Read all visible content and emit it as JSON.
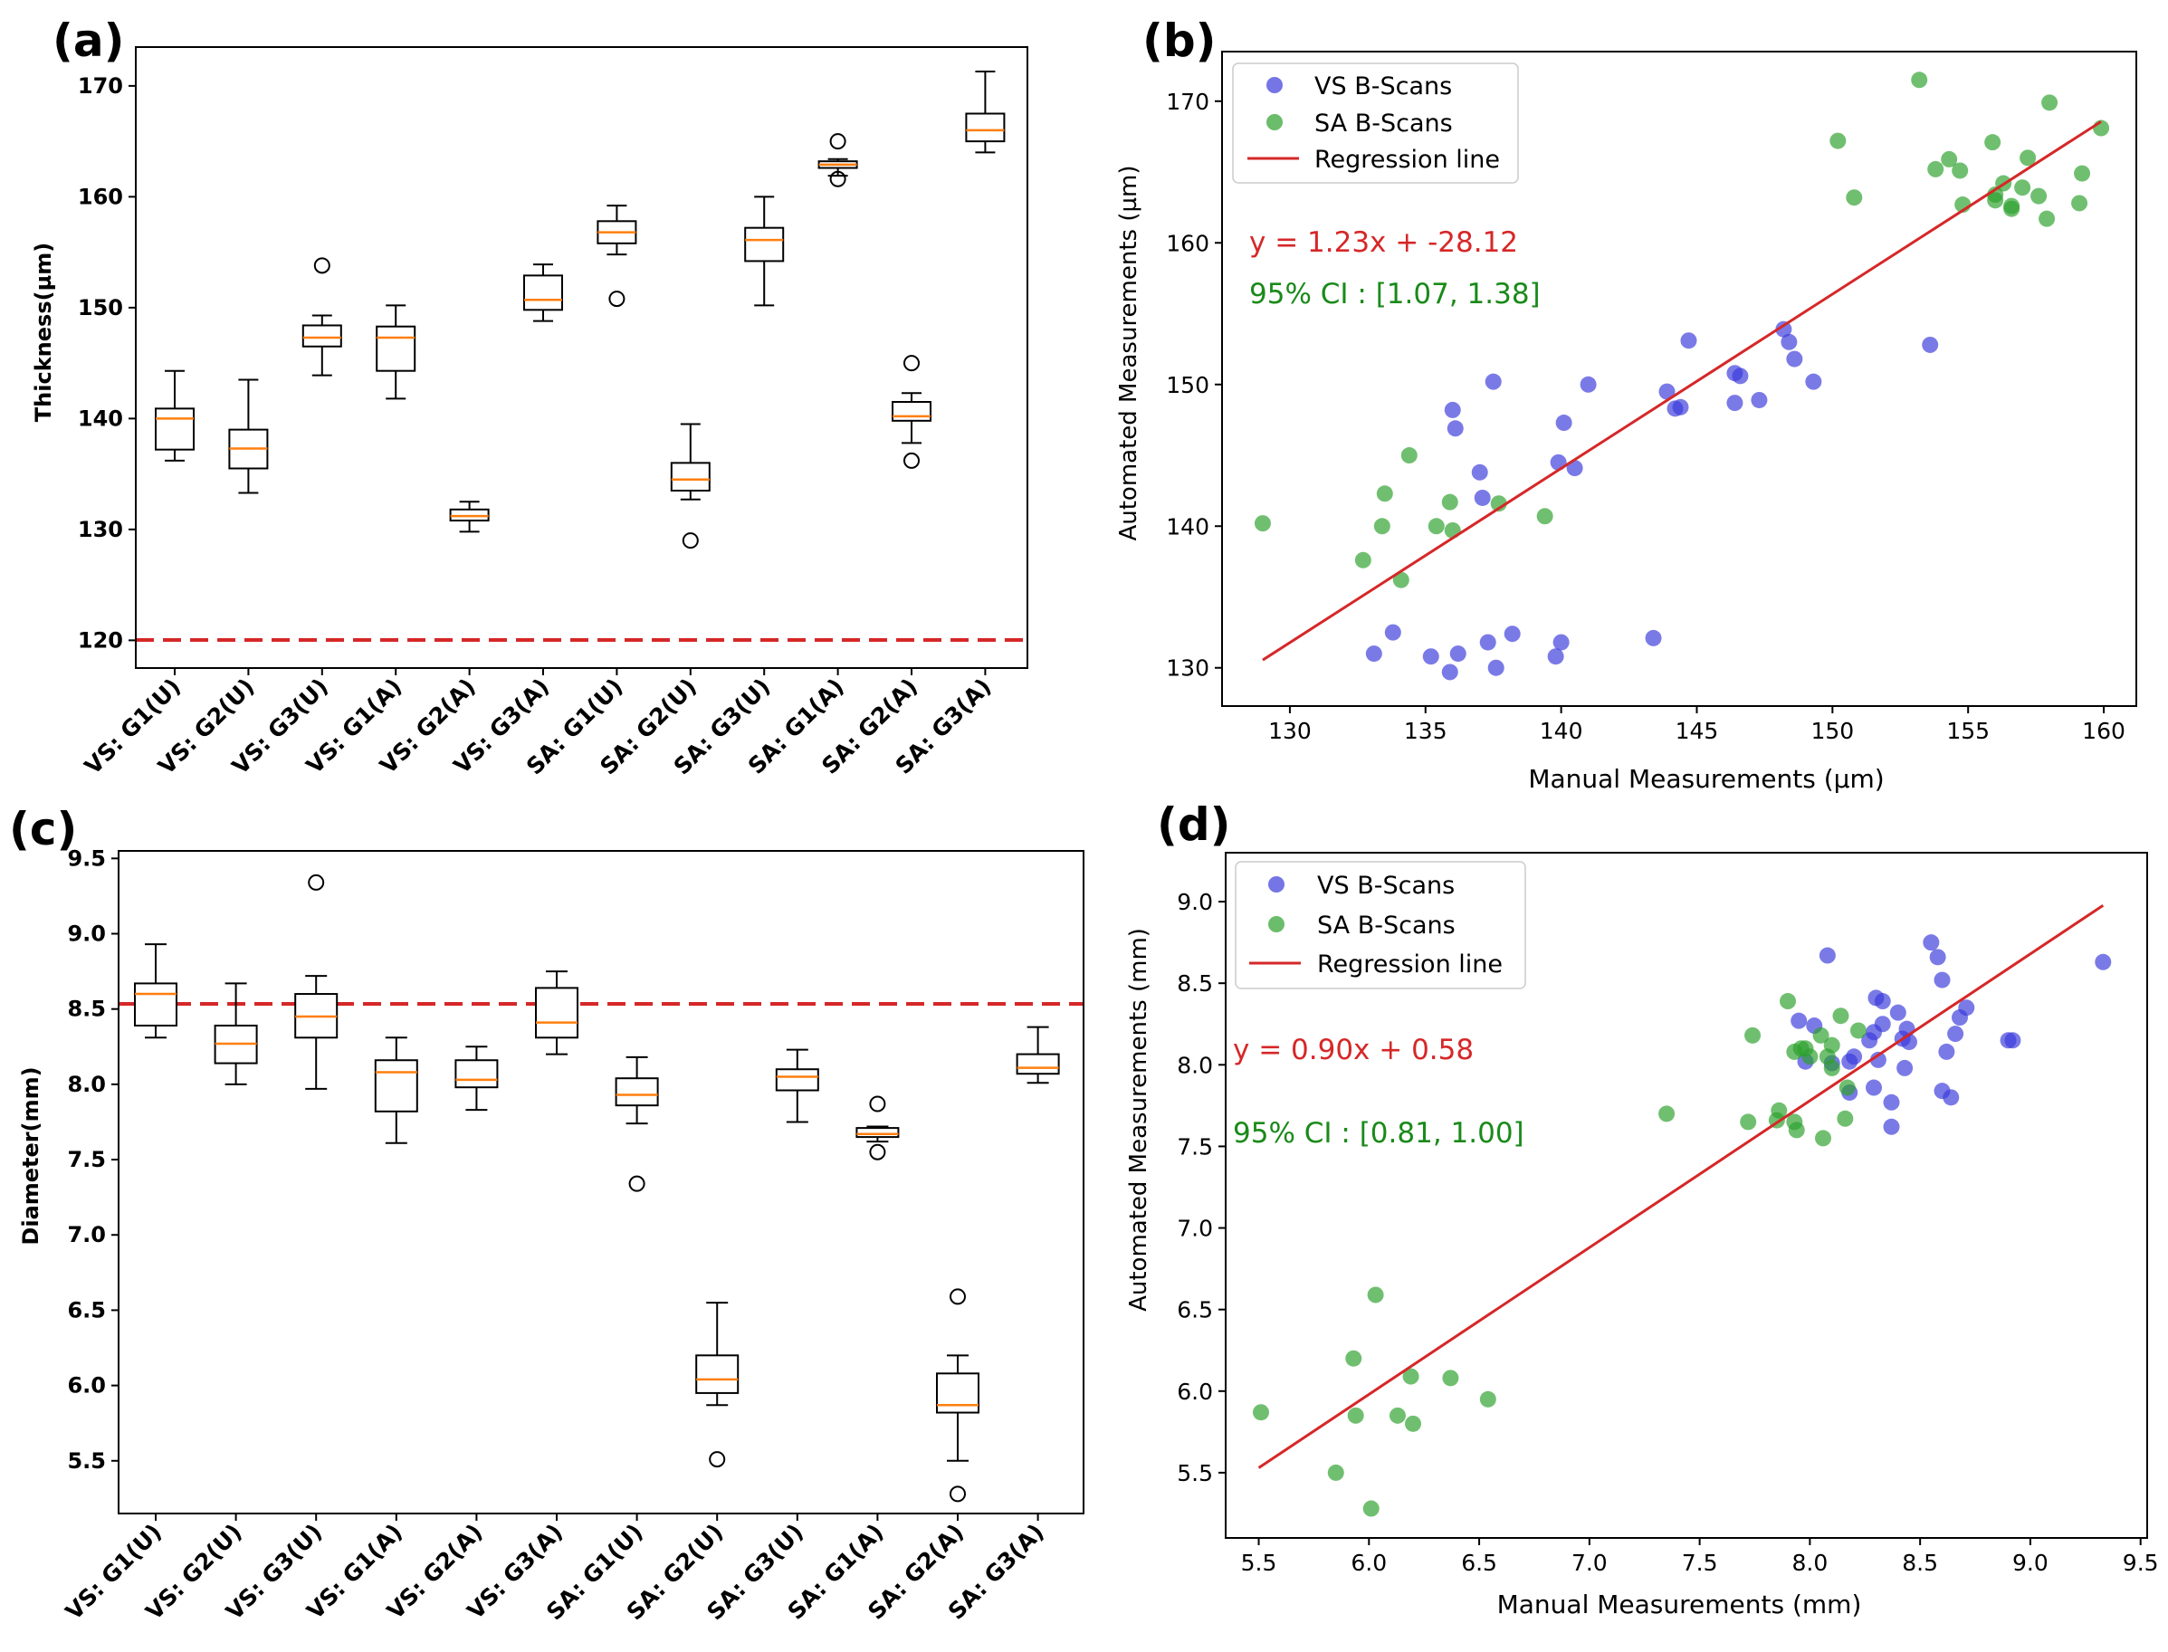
{
  "chart_data": [
    {
      "panel_label": "(a)",
      "type": "box",
      "ylabel": "Thickness(µm)",
      "xlabel": "",
      "ylim": [
        117.5,
        173.5
      ],
      "yticks": [
        "120",
        "130",
        "140",
        "150",
        "160",
        "170"
      ],
      "reference_line": {
        "y": 120,
        "color": "#d62728",
        "style": "dashed"
      },
      "categories": [
        "VS: G1(U)",
        "VS: G2(U)",
        "VS: G3(U)",
        "VS: G1(A)",
        "VS: G2(A)",
        "VS: G3(A)",
        "SA: G1(U)",
        "SA: G2(U)",
        "SA: G3(U)",
        "SA: G1(A)",
        "SA: G2(A)",
        "SA: G3(A)"
      ],
      "boxes": [
        {
          "q1": 137.2,
          "median": 140.0,
          "q3": 140.9,
          "wlo": 136.2,
          "whi": 144.3,
          "fliers": []
        },
        {
          "q1": 135.5,
          "median": 137.3,
          "q3": 139.0,
          "wlo": 133.3,
          "whi": 143.5,
          "fliers": []
        },
        {
          "q1": 146.5,
          "median": 147.3,
          "q3": 148.4,
          "wlo": 143.9,
          "whi": 149.3,
          "fliers": [
            153.8
          ]
        },
        {
          "q1": 144.3,
          "median": 147.3,
          "q3": 148.3,
          "wlo": 141.8,
          "whi": 150.2,
          "fliers": []
        },
        {
          "q1": 130.8,
          "median": 131.2,
          "q3": 131.8,
          "wlo": 129.8,
          "whi": 132.5,
          "fliers": []
        },
        {
          "q1": 149.8,
          "median": 150.7,
          "q3": 152.9,
          "wlo": 148.8,
          "whi": 153.9,
          "fliers": []
        },
        {
          "q1": 155.8,
          "median": 156.8,
          "q3": 157.8,
          "wlo": 154.8,
          "whi": 159.2,
          "fliers": [
            150.8
          ]
        },
        {
          "q1": 133.5,
          "median": 134.5,
          "q3": 136.0,
          "wlo": 132.7,
          "whi": 139.5,
          "fliers": [
            129.0
          ]
        },
        {
          "q1": 154.2,
          "median": 156.1,
          "q3": 157.2,
          "wlo": 150.2,
          "whi": 160.0,
          "fliers": []
        },
        {
          "q1": 162.6,
          "median": 162.9,
          "q3": 163.2,
          "wlo": 161.9,
          "whi": 163.4,
          "fliers": [
            165.0,
            161.6
          ]
        },
        {
          "q1": 139.8,
          "median": 140.2,
          "q3": 141.5,
          "wlo": 137.8,
          "whi": 142.3,
          "fliers": [
            145.0,
            136.2
          ]
        },
        {
          "q1": 165.0,
          "median": 166.0,
          "q3": 167.5,
          "wlo": 164.0,
          "whi": 171.3,
          "fliers": []
        }
      ]
    },
    {
      "panel_label": "(b)",
      "type": "scatter",
      "xlabel": "Manual Measurements (µm)",
      "ylabel": "Automated Measurements (µm)",
      "xlim": [
        127.5,
        161.2
      ],
      "ylim": [
        127.3,
        173.5
      ],
      "xticks": [
        "130",
        "135",
        "140",
        "145",
        "150",
        "155",
        "160"
      ],
      "yticks": [
        "130",
        "140",
        "150",
        "160",
        "170"
      ],
      "legend": {
        "position": "upper-left",
        "entries": [
          "VS B-Scans",
          "SA B-Scans",
          "Regression line"
        ]
      },
      "equation": "y = 1.23x + -28.12",
      "ci": "95% CI : [1.07, 1.38]",
      "regression": {
        "slope": 1.23,
        "intercept": -28.12,
        "x_range": [
          129,
          159.9
        ],
        "color": "#d62728"
      },
      "series": [
        {
          "name": "VS B-Scans",
          "color": "#3b3bdc",
          "points": [
            [
              133.1,
              131.0
            ],
            [
              133.8,
              132.5
            ],
            [
              135.2,
              130.8
            ],
            [
              135.9,
              129.7
            ],
            [
              136.2,
              131.0
            ],
            [
              137.3,
              131.8
            ],
            [
              137.6,
              130.0
            ],
            [
              138.2,
              132.4
            ],
            [
              139.8,
              130.8
            ],
            [
              140.0,
              131.8
            ],
            [
              143.4,
              132.1
            ],
            [
              136.0,
              148.2
            ],
            [
              136.1,
              146.9
            ],
            [
              137.0,
              143.8
            ],
            [
              137.1,
              142.0
            ],
            [
              137.5,
              150.2
            ],
            [
              139.9,
              144.5
            ],
            [
              140.1,
              147.3
            ],
            [
              140.5,
              144.1
            ],
            [
              141.0,
              150.0
            ],
            [
              143.9,
              149.5
            ],
            [
              144.2,
              148.3
            ],
            [
              144.4,
              148.4
            ],
            [
              144.7,
              153.1
            ],
            [
              146.4,
              148.7
            ],
            [
              146.4,
              150.8
            ],
            [
              146.6,
              150.6
            ],
            [
              147.3,
              148.9
            ],
            [
              148.2,
              153.9
            ],
            [
              148.4,
              153.0
            ],
            [
              148.6,
              151.8
            ],
            [
              149.3,
              150.2
            ],
            [
              153.6,
              152.8
            ]
          ]
        },
        {
          "name": "SA B-Scans",
          "color": "#2ca02c",
          "points": [
            [
              129.0,
              140.2
            ],
            [
              132.7,
              137.6
            ],
            [
              133.4,
              140.0
            ],
            [
              133.5,
              142.3
            ],
            [
              134.1,
              136.2
            ],
            [
              134.4,
              145.0
            ],
            [
              135.4,
              140.0
            ],
            [
              135.9,
              141.7
            ],
            [
              136.0,
              139.7
            ],
            [
              137.7,
              141.6
            ],
            [
              139.4,
              140.7
            ],
            [
              150.2,
              167.2
            ],
            [
              150.8,
              163.2
            ],
            [
              153.2,
              171.5
            ],
            [
              153.8,
              165.2
            ],
            [
              154.3,
              165.9
            ],
            [
              154.7,
              165.1
            ],
            [
              154.8,
              162.7
            ],
            [
              155.9,
              167.1
            ],
            [
              156.0,
              163.0
            ],
            [
              156.0,
              163.4
            ],
            [
              156.3,
              164.2
            ],
            [
              156.6,
              162.4
            ],
            [
              156.6,
              162.6
            ],
            [
              157.0,
              163.9
            ],
            [
              157.2,
              166.0
            ],
            [
              157.6,
              163.3
            ],
            [
              157.9,
              161.7
            ],
            [
              158.0,
              169.9
            ],
            [
              159.1,
              162.8
            ],
            [
              159.2,
              164.9
            ],
            [
              159.9,
              168.1
            ]
          ]
        }
      ]
    },
    {
      "panel_label": "(c)",
      "type": "box",
      "ylabel": "Diameter(mm)",
      "xlabel": "",
      "ylim": [
        5.15,
        9.55
      ],
      "yticks": [
        "5.5",
        "6.0",
        "6.5",
        "7.0",
        "7.5",
        "8.0",
        "8.5",
        "9.0",
        "9.5"
      ],
      "reference_line": {
        "y": 8.5,
        "color": "#d62728",
        "style": "dashed"
      },
      "categories": [
        "VS: G1(U)",
        "VS: G2(U)",
        "VS: G3(U)",
        "VS: G1(A)",
        "VS: G2(A)",
        "VS: G3(A)",
        "SA: G1(U)",
        "SA: G2(U)",
        "SA: G3(U)",
        "SA: G1(A)",
        "SA: G2(A)",
        "SA: G3(A)"
      ],
      "boxes": [
        {
          "q1": 8.39,
          "median": 8.6,
          "q3": 8.67,
          "wlo": 8.31,
          "whi": 8.93,
          "fliers": []
        },
        {
          "q1": 8.14,
          "median": 8.27,
          "q3": 8.39,
          "wlo": 8.0,
          "whi": 8.67,
          "fliers": []
        },
        {
          "q1": 8.31,
          "median": 8.45,
          "q3": 8.6,
          "wlo": 7.97,
          "whi": 8.72,
          "fliers": [
            9.34
          ]
        },
        {
          "q1": 7.82,
          "median": 8.08,
          "q3": 8.16,
          "wlo": 7.61,
          "whi": 8.31,
          "fliers": []
        },
        {
          "q1": 7.98,
          "median": 8.03,
          "q3": 8.16,
          "wlo": 7.83,
          "whi": 8.25,
          "fliers": []
        },
        {
          "q1": 8.31,
          "median": 8.41,
          "q3": 8.64,
          "wlo": 8.2,
          "whi": 8.75,
          "fliers": []
        },
        {
          "q1": 7.86,
          "median": 7.93,
          "q3": 8.04,
          "wlo": 7.74,
          "whi": 8.18,
          "fliers": [
            7.34
          ]
        },
        {
          "q1": 5.95,
          "median": 6.04,
          "q3": 6.2,
          "wlo": 5.87,
          "whi": 6.55,
          "fliers": [
            5.51
          ]
        },
        {
          "q1": 7.96,
          "median": 8.05,
          "q3": 8.1,
          "wlo": 7.75,
          "whi": 8.23,
          "fliers": []
        },
        {
          "q1": 7.65,
          "median": 7.67,
          "q3": 7.71,
          "wlo": 7.62,
          "whi": 7.72,
          "fliers": [
            7.87,
            7.55
          ]
        },
        {
          "q1": 5.82,
          "median": 5.87,
          "q3": 6.08,
          "wlo": 5.5,
          "whi": 6.2,
          "fliers": [
            6.59,
            5.28
          ]
        },
        {
          "q1": 8.07,
          "median": 8.11,
          "q3": 8.2,
          "wlo": 8.01,
          "whi": 8.38,
          "fliers": []
        }
      ]
    },
    {
      "panel_label": "(d)",
      "type": "scatter",
      "xlabel": "Manual Measurements (mm)",
      "ylabel": "Automated Measurements (mm)",
      "xlim": [
        5.35,
        9.53
      ],
      "ylim": [
        5.1,
        9.3
      ],
      "xticks": [
        "5.5",
        "6.0",
        "6.5",
        "7.0",
        "7.5",
        "8.0",
        "8.5",
        "9.0",
        "9.5"
      ],
      "yticks": [
        "5.5",
        "6.0",
        "6.5",
        "7.0",
        "7.5",
        "8.0",
        "8.5",
        "9.0"
      ],
      "legend": {
        "position": "upper-left",
        "entries": [
          "VS B-Scans",
          "SA B-Scans",
          "Regression line"
        ]
      },
      "equation": "y = 0.90x + 0.58",
      "ci": "95% CI : [0.81, 1.00]",
      "regression": {
        "slope": 0.9,
        "intercept": 0.58,
        "x_range": [
          5.5,
          9.33
        ],
        "color": "#d62728"
      },
      "series": [
        {
          "name": "VS B-Scans",
          "color": "#3b3bdc",
          "points": [
            [
              7.95,
              8.27
            ],
            [
              7.98,
              8.02
            ],
            [
              8.02,
              8.24
            ],
            [
              8.08,
              8.67
            ],
            [
              8.1,
              8.01
            ],
            [
              8.18,
              8.02
            ],
            [
              8.18,
              7.83
            ],
            [
              8.2,
              8.05
            ],
            [
              8.27,
              8.15
            ],
            [
              8.29,
              8.2
            ],
            [
              8.29,
              7.86
            ],
            [
              8.3,
              8.41
            ],
            [
              8.31,
              8.03
            ],
            [
              8.33,
              8.25
            ],
            [
              8.33,
              8.39
            ],
            [
              8.37,
              7.77
            ],
            [
              8.37,
              7.62
            ],
            [
              8.4,
              8.32
            ],
            [
              8.42,
              8.16
            ],
            [
              8.43,
              7.98
            ],
            [
              8.44,
              8.22
            ],
            [
              8.45,
              8.14
            ],
            [
              8.55,
              8.75
            ],
            [
              8.58,
              8.66
            ],
            [
              8.6,
              7.84
            ],
            [
              8.6,
              8.52
            ],
            [
              8.62,
              8.08
            ],
            [
              8.64,
              7.8
            ],
            [
              8.66,
              8.19
            ],
            [
              8.68,
              8.29
            ],
            [
              8.71,
              8.35
            ],
            [
              8.9,
              8.15
            ],
            [
              8.92,
              8.15
            ],
            [
              9.33,
              8.63
            ]
          ]
        },
        {
          "name": "SA B-Scans",
          "color": "#2ca02c",
          "points": [
            [
              5.51,
              5.87
            ],
            [
              5.85,
              5.5
            ],
            [
              5.93,
              6.2
            ],
            [
              5.94,
              5.85
            ],
            [
              6.01,
              5.28
            ],
            [
              6.03,
              6.59
            ],
            [
              6.13,
              5.85
            ],
            [
              6.19,
              6.09
            ],
            [
              6.2,
              5.8
            ],
            [
              6.37,
              6.08
            ],
            [
              6.54,
              5.95
            ],
            [
              7.35,
              7.7
            ],
            [
              7.72,
              7.65
            ],
            [
              7.74,
              8.18
            ],
            [
              7.85,
              7.66
            ],
            [
              7.86,
              7.72
            ],
            [
              7.9,
              8.39
            ],
            [
              7.93,
              8.08
            ],
            [
              7.93,
              7.65
            ],
            [
              7.94,
              7.6
            ],
            [
              7.96,
              8.1
            ],
            [
              7.98,
              8.1
            ],
            [
              8.0,
              8.05
            ],
            [
              8.05,
              8.18
            ],
            [
              8.06,
              7.55
            ],
            [
              8.08,
              8.05
            ],
            [
              8.1,
              7.98
            ],
            [
              8.1,
              8.12
            ],
            [
              8.14,
              8.3
            ],
            [
              8.16,
              7.67
            ],
            [
              8.17,
              7.86
            ],
            [
              8.22,
              8.21
            ]
          ]
        }
      ]
    }
  ]
}
